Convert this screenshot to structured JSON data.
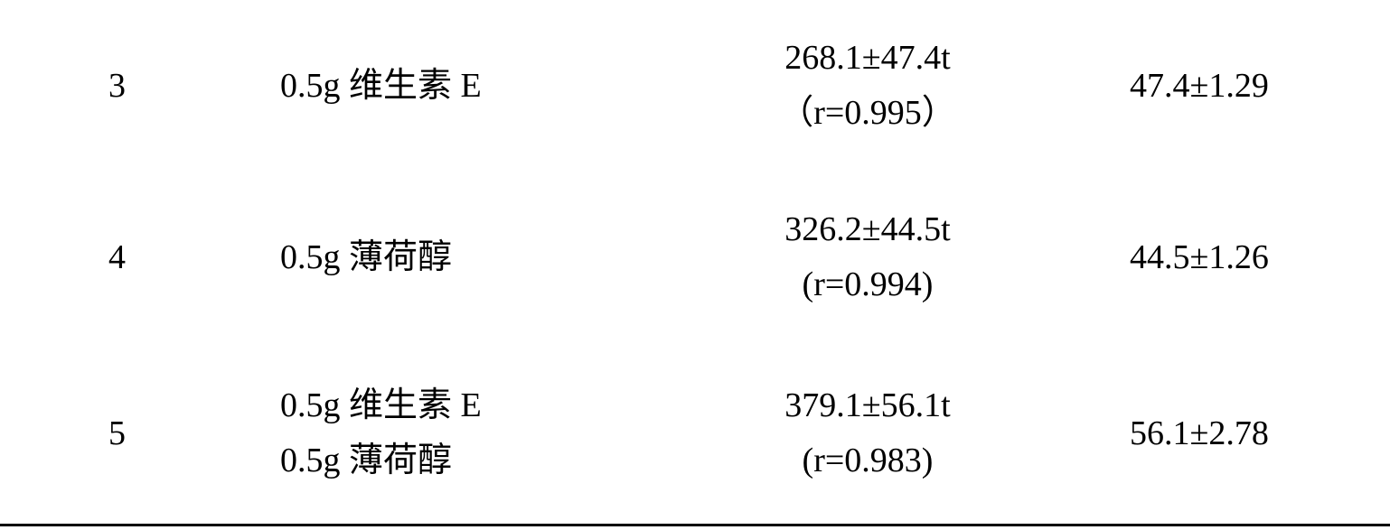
{
  "rows": [
    {
      "idx": "3",
      "ingredients": [
        "0.5g 维生素 E"
      ],
      "mid_top": "268.1±47.4t",
      "mid_bottom": "（r=0.995）",
      "last": "47.4±1.29"
    },
    {
      "idx": "4",
      "ingredients": [
        "0.5g 薄荷醇"
      ],
      "mid_top": "326.2±44.5t",
      "mid_bottom": "(r=0.994)",
      "last": "44.5±1.26"
    },
    {
      "idx": "5",
      "ingredients": [
        "0.5g 维生素 E",
        "0.5g 薄荷醇"
      ],
      "mid_top": "379.1±56.1t",
      "mid_bottom": "(r=0.983)",
      "last": "56.1±2.78"
    }
  ],
  "font_size_pt": 38,
  "text_color": "#000000",
  "background_color": "#ffffff",
  "border_color": "#000000"
}
